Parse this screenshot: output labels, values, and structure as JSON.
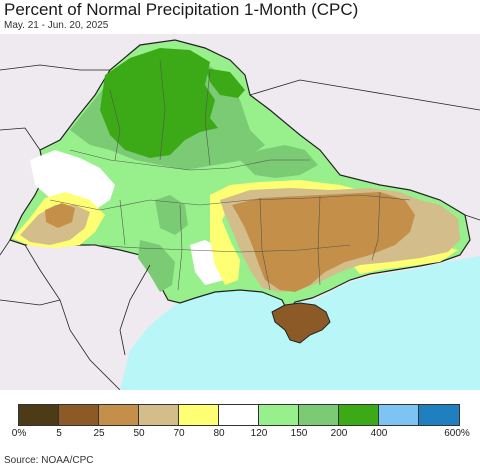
{
  "title": "Percent of Normal Precipitation 1-Month (CPC)",
  "subtitle": "May. 21 - Jun. 20, 2025",
  "source": "Source: NOAA/CPC",
  "legend": {
    "colors": [
      "#4d3a16",
      "#8b5a26",
      "#c48f48",
      "#d3bd8a",
      "#ffff73",
      "#ffffff",
      "#98f08c",
      "#7bca74",
      "#3caa17",
      "#7dc4f4",
      "#1f7fbf"
    ],
    "tick_labels": [
      "0%",
      "5",
      "25",
      "50",
      "70",
      "80",
      "120",
      "150",
      "200",
      "400",
      "600%"
    ]
  },
  "colors": {
    "land_outside": "#eeeaf0",
    "sea": "#b9f6f8",
    "border": "#222222"
  }
}
